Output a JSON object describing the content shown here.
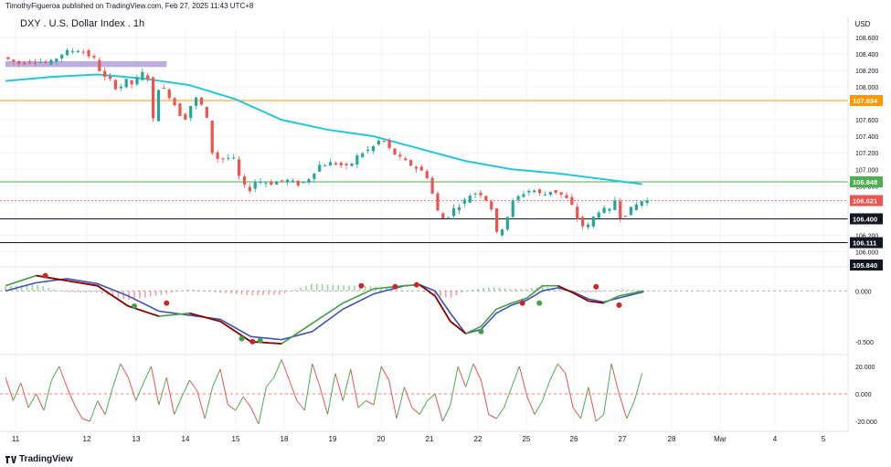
{
  "header": {
    "published_by": "TimothyFigueroa published on TradingView.com, Feb 27, 2025 11:43 UTC+8",
    "title": "DXY . U.S. Dollar Index . 1h",
    "currency": "USD"
  },
  "footer": {
    "brand": "TradingView",
    "logo_icon": "tradingview-logo-icon"
  },
  "chart_data": [
    {
      "type": "candlestick",
      "title": "DXY . U.S. Dollar Index . 1h",
      "ylabel": "USD",
      "ylim": [
        105.84,
        108.72
      ],
      "y_ticks": [
        106.0,
        106.2,
        106.4,
        106.6,
        106.8,
        107.0,
        107.2,
        107.4,
        107.6,
        107.8,
        108.0,
        108.2,
        108.4,
        108.6
      ],
      "y_tick_labels": [
        "106.000",
        "106.200",
        "106.400",
        "106.600",
        "106.800",
        "107.000",
        "107.200",
        "107.400",
        "107.600",
        "107.800",
        "108.000",
        "108.200",
        "108.400",
        "108.600"
      ],
      "x_tick_labels": [
        "11",
        "12",
        "13",
        "14",
        "15",
        "18",
        "19",
        "20",
        "21",
        "22",
        "25",
        "26",
        "27",
        "28",
        "Mar",
        "4",
        "5"
      ],
      "price_path": [
        [
          0,
          108.36
        ],
        [
          1,
          108.28
        ],
        [
          2,
          108.32
        ],
        [
          3,
          108.28
        ],
        [
          4,
          108.42
        ],
        [
          5,
          108.45
        ],
        [
          6,
          108.33
        ],
        [
          6.5,
          108.12
        ],
        [
          7,
          108.08
        ],
        [
          7.5,
          107.96
        ],
        [
          8,
          108.08
        ],
        [
          8.5,
          108.02
        ],
        [
          9,
          108.18
        ],
        [
          9.5,
          108.1
        ],
        [
          9.8,
          107.6
        ],
        [
          10.2,
          108.04
        ],
        [
          11,
          107.85
        ],
        [
          11.8,
          107.58
        ],
        [
          12.5,
          107.88
        ],
        [
          13.2,
          107.72
        ],
        [
          13.7,
          107.15
        ],
        [
          14.2,
          107.12
        ],
        [
          15,
          107.15
        ],
        [
          15.5,
          106.85
        ],
        [
          16,
          106.73
        ],
        [
          16.5,
          106.86
        ],
        [
          17.5,
          106.83
        ],
        [
          18.5,
          106.87
        ],
        [
          19.4,
          106.81
        ],
        [
          20,
          106.9
        ],
        [
          20.6,
          107.05
        ],
        [
          21.5,
          107.08
        ],
        [
          22.5,
          107.02
        ],
        [
          23.2,
          107.18
        ],
        [
          24,
          107.25
        ],
        [
          24.7,
          107.38
        ],
        [
          25.3,
          107.22
        ],
        [
          26,
          107.12
        ],
        [
          26.8,
          107.03
        ],
        [
          27.3,
          106.98
        ],
        [
          27.8,
          106.88
        ],
        [
          28.2,
          106.53
        ],
        [
          28.8,
          106.38
        ],
        [
          29.4,
          106.52
        ],
        [
          30,
          106.6
        ],
        [
          30.6,
          106.72
        ],
        [
          31.2,
          106.7
        ],
        [
          31.8,
          106.57
        ],
        [
          32.2,
          106.22
        ],
        [
          32.7,
          106.32
        ],
        [
          33.2,
          106.6
        ],
        [
          33.8,
          106.7
        ],
        [
          34.5,
          106.76
        ],
        [
          35.2,
          106.68
        ],
        [
          35.8,
          106.75
        ],
        [
          36.5,
          106.68
        ],
        [
          37,
          106.6
        ],
        [
          37.5,
          106.38
        ],
        [
          38,
          106.27
        ],
        [
          38.5,
          106.42
        ],
        [
          39,
          106.53
        ],
        [
          39.5,
          106.48
        ],
        [
          40,
          106.67
        ],
        [
          40.3,
          106.38
        ],
        [
          40.7,
          106.48
        ],
        [
          41.2,
          106.56
        ],
        [
          41.7,
          106.621
        ]
      ],
      "series_ma": {
        "name": "",
        "color": "#26c6da",
        "points": [
          [
            0,
            108.07
          ],
          [
            3,
            108.12
          ],
          [
            6,
            108.15
          ],
          [
            9,
            108.1
          ],
          [
            12,
            108.02
          ],
          [
            15,
            107.85
          ],
          [
            18,
            107.6
          ],
          [
            21,
            107.48
          ],
          [
            24,
            107.4
          ],
          [
            26,
            107.3
          ],
          [
            28,
            107.2
          ],
          [
            30,
            107.1
          ],
          [
            33,
            107.0
          ],
          [
            36,
            106.95
          ],
          [
            39,
            106.88
          ],
          [
            41.5,
            106.82
          ]
        ]
      },
      "resistance_zone": {
        "range": [
          108.24,
          108.31
        ],
        "x_range": [
          0,
          10.5
        ],
        "color": "#b39ddb"
      },
      "levels": [
        {
          "value": 107.834,
          "label": "107.834",
          "color": "#ff9800",
          "style": "solid"
        },
        {
          "value": 106.848,
          "label": "106.848",
          "color": "#4caf50",
          "style": "solid"
        },
        {
          "value": 106.621,
          "label": "106.621",
          "color": "#ef5350",
          "style": "dotted"
        },
        {
          "value": 106.4,
          "label": "106.400",
          "color": "#131722",
          "style": "solid"
        },
        {
          "value": 106.111,
          "label": "106.111",
          "color": "#131722",
          "style": "solid"
        },
        {
          "value": 105.84,
          "label": "105.840",
          "color": "#131722",
          "style": "label"
        }
      ]
    },
    {
      "type": "line",
      "title": "",
      "ylim": [
        -0.6,
        0.2
      ],
      "y_tick_labels": [
        "0.000",
        "-0.500"
      ],
      "y_ticks": [
        0,
        -0.5
      ],
      "series": [
        {
          "name": "",
          "color": "#43a047",
          "points": [
            [
              0,
              0.05
            ],
            [
              2,
              0.15
            ],
            [
              4,
              0.1
            ],
            [
              6,
              0.05
            ],
            [
              8,
              -0.15
            ],
            [
              10,
              -0.25
            ],
            [
              12,
              -0.22
            ],
            [
              14,
              -0.3
            ],
            [
              16,
              -0.5
            ],
            [
              18,
              -0.52
            ],
            [
              20,
              -0.32
            ],
            [
              22,
              -0.12
            ],
            [
              24,
              0.02
            ],
            [
              26,
              0.05
            ],
            [
              27,
              0.06
            ],
            [
              28,
              -0.05
            ],
            [
              29,
              -0.3
            ],
            [
              30,
              -0.42
            ],
            [
              31,
              -0.35
            ],
            [
              32,
              -0.18
            ],
            [
              33,
              -0.12
            ],
            [
              34,
              -0.07
            ],
            [
              35,
              0.05
            ],
            [
              36,
              0.05
            ],
            [
              37,
              -0.02
            ],
            [
              38,
              -0.1
            ],
            [
              39,
              -0.12
            ],
            [
              40,
              -0.05
            ],
            [
              41.6,
              0.0
            ]
          ]
        },
        {
          "name": "",
          "color": "#3f51b5",
          "points": [
            [
              0,
              0.0
            ],
            [
              2,
              0.08
            ],
            [
              4,
              0.12
            ],
            [
              6,
              0.07
            ],
            [
              8,
              -0.05
            ],
            [
              10,
              -0.2
            ],
            [
              12,
              -0.24
            ],
            [
              14,
              -0.28
            ],
            [
              16,
              -0.45
            ],
            [
              18,
              -0.48
            ],
            [
              20,
              -0.4
            ],
            [
              22,
              -0.18
            ],
            [
              24,
              -0.03
            ],
            [
              26,
              0.05
            ],
            [
              27,
              0.06
            ],
            [
              28,
              0.0
            ],
            [
              29,
              -0.22
            ],
            [
              30,
              -0.42
            ],
            [
              31,
              -0.38
            ],
            [
              32,
              -0.22
            ],
            [
              33,
              -0.14
            ],
            [
              34,
              -0.09
            ],
            [
              35,
              0.0
            ],
            [
              36,
              0.03
            ],
            [
              37,
              -0.01
            ],
            [
              38,
              -0.08
            ],
            [
              39,
              -0.11
            ],
            [
              40,
              -0.07
            ],
            [
              41.6,
              -0.01
            ]
          ]
        }
      ],
      "signals": [
        {
          "x": 2.6,
          "y": 0.15,
          "color": "#c62828"
        },
        {
          "x": 8.4,
          "y": -0.15,
          "color": "#43a047"
        },
        {
          "x": 10.5,
          "y": -0.12,
          "color": "#c62828"
        },
        {
          "x": 15.4,
          "y": -0.47,
          "color": "#43a047"
        },
        {
          "x": 16.1,
          "y": -0.5,
          "color": "#c62828"
        },
        {
          "x": 16.6,
          "y": -0.49,
          "color": "#43a047"
        },
        {
          "x": 23.2,
          "y": 0.05,
          "color": "#c62828"
        },
        {
          "x": 25.4,
          "y": 0.04,
          "color": "#c62828"
        },
        {
          "x": 26.8,
          "y": 0.06,
          "color": "#c62828"
        },
        {
          "x": 31.0,
          "y": -0.4,
          "color": "#43a047"
        },
        {
          "x": 33.7,
          "y": -0.12,
          "color": "#c62828"
        },
        {
          "x": 34.8,
          "y": -0.12,
          "color": "#43a047"
        },
        {
          "x": 38.5,
          "y": 0.04,
          "color": "#c62828"
        },
        {
          "x": 40.0,
          "y": -0.14,
          "color": "#c62828"
        }
      ]
    },
    {
      "type": "line",
      "title": "",
      "ylim": [
        -26,
        26
      ],
      "y_tick_labels": [
        "20.000",
        "0.000",
        "-20.000"
      ],
      "y_ticks": [
        20,
        0,
        -20
      ],
      "series": [
        {
          "name": "",
          "color_up": "#4caf50",
          "color_down": "#ef5350",
          "points": [
            [
              0,
              12
            ],
            [
              0.5,
              -5
            ],
            [
              1,
              8
            ],
            [
              1.5,
              -10
            ],
            [
              2,
              0
            ],
            [
              2.5,
              -12
            ],
            [
              3,
              10
            ],
            [
              3.5,
              20
            ],
            [
              4,
              5
            ],
            [
              4.5,
              -8
            ],
            [
              5,
              -18
            ],
            [
              5.5,
              -20
            ],
            [
              6,
              -5
            ],
            [
              6.5,
              -15
            ],
            [
              7,
              5
            ],
            [
              7.5,
              22
            ],
            [
              8,
              12
            ],
            [
              8.5,
              -5
            ],
            [
              9,
              8
            ],
            [
              9.5,
              20
            ],
            [
              10,
              -8
            ],
            [
              10.5,
              12
            ],
            [
              11,
              -15
            ],
            [
              11.5,
              -2
            ],
            [
              12,
              10
            ],
            [
              12.5,
              2
            ],
            [
              13,
              -18
            ],
            [
              13.5,
              5
            ],
            [
              14,
              18
            ],
            [
              14.5,
              -8
            ],
            [
              15,
              -12
            ],
            [
              15.5,
              -2
            ],
            [
              16,
              -10
            ],
            [
              16.5,
              -22
            ],
            [
              17,
              5
            ],
            [
              17.5,
              12
            ],
            [
              18,
              25
            ],
            [
              18.5,
              10
            ],
            [
              19,
              -5
            ],
            [
              19.5,
              -12
            ],
            [
              20,
              22
            ],
            [
              20.5,
              5
            ],
            [
              21,
              -15
            ],
            [
              21.5,
              15
            ],
            [
              22,
              -5
            ],
            [
              22.5,
              18
            ],
            [
              23,
              -10
            ],
            [
              23.5,
              -5
            ],
            [
              24,
              -8
            ],
            [
              24.5,
              20
            ],
            [
              25,
              10
            ],
            [
              25.5,
              -18
            ],
            [
              26,
              5
            ],
            [
              26.5,
              -10
            ],
            [
              27,
              -15
            ],
            [
              27.5,
              -5
            ],
            [
              28,
              0
            ],
            [
              28.5,
              -20
            ],
            [
              29,
              -8
            ],
            [
              29.5,
              20
            ],
            [
              30,
              5
            ],
            [
              30.5,
              22
            ],
            [
              31,
              10
            ],
            [
              31.5,
              -15
            ],
            [
              32,
              -18
            ],
            [
              32.5,
              -10
            ],
            [
              33,
              5
            ],
            [
              33.5,
              20
            ],
            [
              34,
              -2
            ],
            [
              34.5,
              -15
            ],
            [
              35,
              -5
            ],
            [
              35.5,
              10
            ],
            [
              36,
              22
            ],
            [
              36.5,
              15
            ],
            [
              37,
              -10
            ],
            [
              37.5,
              -18
            ],
            [
              38,
              5
            ],
            [
              38.5,
              -20
            ],
            [
              39,
              -15
            ],
            [
              39.5,
              22
            ],
            [
              40,
              0
            ],
            [
              40.5,
              -18
            ],
            [
              41,
              -5
            ],
            [
              41.5,
              15
            ]
          ]
        }
      ]
    }
  ]
}
